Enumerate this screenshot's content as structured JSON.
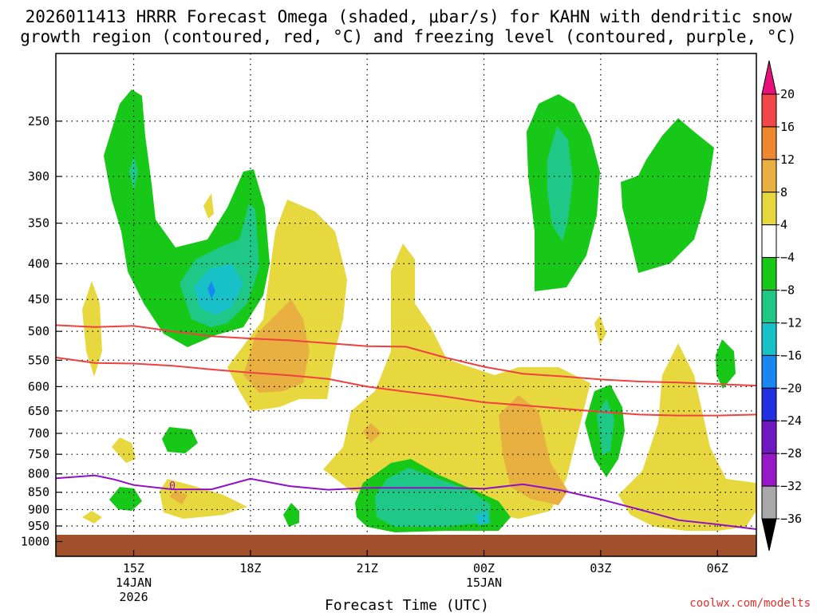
{
  "chart_data": {
    "type": "heatmap",
    "title_line1": "2026011413 HRRR Forecast Omega (shaded, μbar/s) for KAHN with dendritic snow",
    "title_line2": "growth region (contoured, red, °C) and freezing level (contoured, purple, °C)",
    "xlabel": "Forecast Time (UTC)",
    "credit": "coolwx.com/modelts",
    "x_ticks": [
      {
        "hour": 15,
        "label": "15Z",
        "sub1": "14JAN",
        "sub2": "2026"
      },
      {
        "hour": 18,
        "label": "18Z",
        "sub1": "",
        "sub2": ""
      },
      {
        "hour": 21,
        "label": "21Z",
        "sub1": "",
        "sub2": ""
      },
      {
        "hour": 24,
        "label": "00Z",
        "sub1": "15JAN",
        "sub2": ""
      },
      {
        "hour": 27,
        "label": "03Z",
        "sub1": "",
        "sub2": ""
      },
      {
        "hour": 30,
        "label": "06Z",
        "sub1": "",
        "sub2": ""
      }
    ],
    "xlim": [
      13,
      31
    ],
    "y_ticks": [
      250,
      300,
      350,
      400,
      450,
      500,
      550,
      600,
      650,
      700,
      750,
      800,
      850,
      900,
      950,
      1000
    ],
    "ylim_hpa": [
      200,
      1050
    ],
    "colorbar": {
      "labels": [
        "20",
        "16",
        "12",
        "8",
        "4",
        "−4",
        "−8",
        "−12",
        "−16",
        "−20",
        "−24",
        "−28",
        "−32",
        "−36"
      ],
      "colors": [
        "#e8107a",
        "#f04848",
        "#ee8830",
        "#e8b040",
        "#e8d840",
        "#ffffff",
        "#18c818",
        "#20c888",
        "#18c0c8",
        "#1888f0",
        "#2030e0",
        "#7018c0",
        "#9818c8",
        "#a8a8a8",
        "#000000"
      ]
    },
    "dgz_upper": [
      [
        13,
        490
      ],
      [
        14,
        493
      ],
      [
        15,
        491
      ],
      [
        16,
        500
      ],
      [
        17,
        508
      ],
      [
        18,
        512
      ],
      [
        19,
        515
      ],
      [
        20,
        520
      ],
      [
        21,
        525
      ],
      [
        22,
        526
      ],
      [
        23,
        545
      ],
      [
        24,
        562
      ],
      [
        25,
        575
      ],
      [
        26,
        580
      ],
      [
        27,
        586
      ],
      [
        28,
        590
      ],
      [
        29,
        592
      ],
      [
        30,
        595
      ],
      [
        31,
        598
      ]
    ],
    "dgz_lower": [
      [
        13,
        545
      ],
      [
        14,
        555
      ],
      [
        15,
        556
      ],
      [
        16,
        560
      ],
      [
        17,
        567
      ],
      [
        18,
        573
      ],
      [
        19,
        578
      ],
      [
        20,
        585
      ],
      [
        21,
        600
      ],
      [
        22,
        610
      ],
      [
        23,
        620
      ],
      [
        24,
        632
      ],
      [
        25,
        638
      ],
      [
        26,
        645
      ],
      [
        27,
        652
      ],
      [
        28,
        658
      ],
      [
        29,
        660
      ],
      [
        30,
        660
      ],
      [
        31,
        658
      ]
    ],
    "freezing_level": [
      [
        13,
        812
      ],
      [
        14,
        804
      ],
      [
        14.5,
        815
      ],
      [
        15,
        830
      ],
      [
        16,
        842
      ],
      [
        17,
        842
      ],
      [
        18,
        813
      ],
      [
        19,
        833
      ],
      [
        20,
        843
      ],
      [
        21,
        838
      ],
      [
        22,
        838
      ],
      [
        23,
        838
      ],
      [
        24,
        840
      ],
      [
        25,
        828
      ],
      [
        26,
        845
      ],
      [
        27,
        870
      ],
      [
        28,
        900
      ],
      [
        29,
        932
      ],
      [
        30,
        945
      ],
      [
        31,
        960
      ]
    ],
    "freezing_label": "0"
  }
}
